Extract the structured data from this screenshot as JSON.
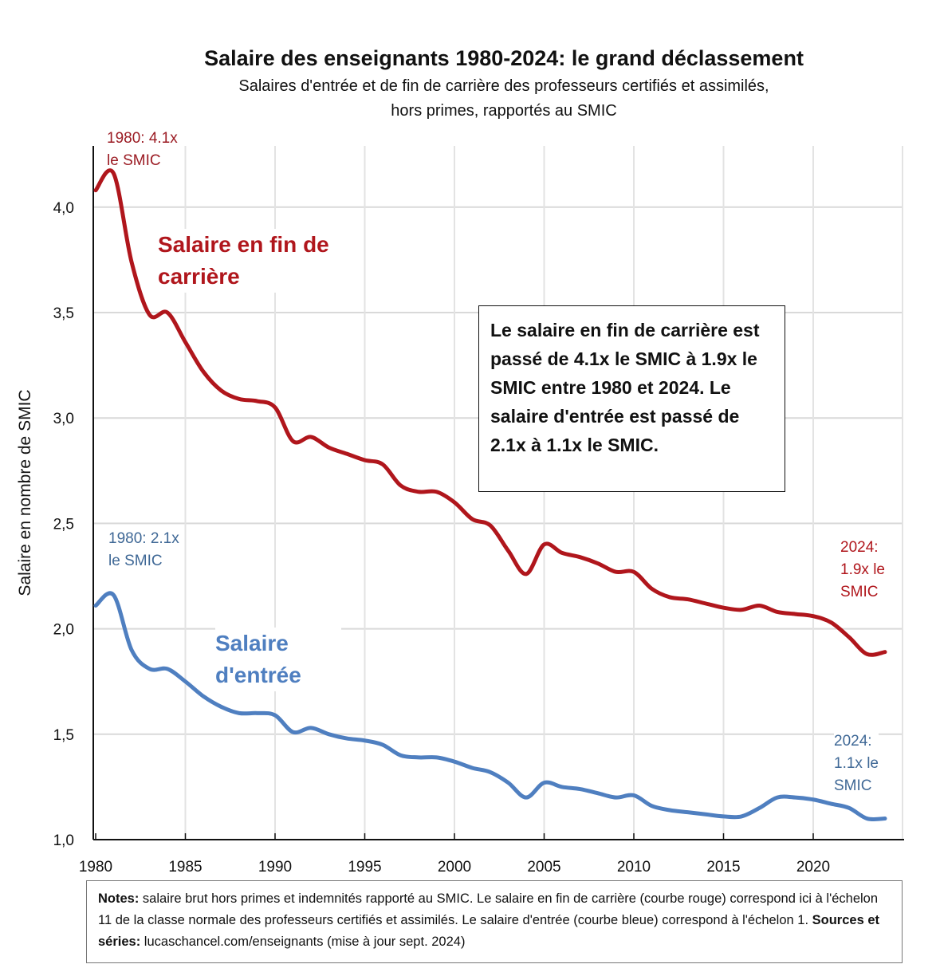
{
  "chart_data": {
    "type": "line",
    "title": "Salaire des enseignants 1980-2024: le grand déclassement",
    "subtitle_line1": "Salaires d'entrée et de fin de carrière des professeurs certifiés et assimilés,",
    "subtitle_line2": "hors primes, rapportés au SMIC",
    "xlabel": "",
    "ylabel": "Salaire en nombre de SMIC",
    "xlim": [
      1980,
      2024
    ],
    "ylim": [
      1.0,
      4.3
    ],
    "x_ticks": [
      "1980",
      "1985",
      "1990",
      "1995",
      "2000",
      "2005",
      "2010",
      "2015",
      "2020"
    ],
    "y_ticks": [
      "1,0",
      "1,5",
      "2,0",
      "2,5",
      "3,0",
      "3,5",
      "4,0"
    ],
    "grid": true,
    "x": [
      1980,
      1981,
      1982,
      1983,
      1984,
      1985,
      1986,
      1987,
      1988,
      1989,
      1990,
      1991,
      1992,
      1993,
      1994,
      1995,
      1996,
      1997,
      1998,
      1999,
      2000,
      2001,
      2002,
      2003,
      2004,
      2005,
      2006,
      2007,
      2008,
      2009,
      2010,
      2011,
      2012,
      2013,
      2014,
      2015,
      2016,
      2017,
      2018,
      2019,
      2020,
      2021,
      2022,
      2023,
      2024
    ],
    "series": [
      {
        "name": "Salaire en fin de carrière",
        "color": "#b0161c",
        "values": [
          4.08,
          4.16,
          3.74,
          3.49,
          3.5,
          3.36,
          3.22,
          3.13,
          3.09,
          3.08,
          3.05,
          2.89,
          2.91,
          2.86,
          2.83,
          2.8,
          2.78,
          2.68,
          2.65,
          2.65,
          2.6,
          2.52,
          2.49,
          2.37,
          2.26,
          2.4,
          2.36,
          2.34,
          2.31,
          2.27,
          2.27,
          2.19,
          2.15,
          2.14,
          2.12,
          2.1,
          2.09,
          2.11,
          2.08,
          2.07,
          2.06,
          2.03,
          1.96,
          1.88,
          1.89
        ]
      },
      {
        "name": "Salaire d'entrée",
        "color": "#4f7fc0",
        "values": [
          2.11,
          2.16,
          1.9,
          1.81,
          1.81,
          1.75,
          1.68,
          1.63,
          1.6,
          1.6,
          1.59,
          1.51,
          1.53,
          1.5,
          1.48,
          1.47,
          1.45,
          1.4,
          1.39,
          1.39,
          1.37,
          1.34,
          1.32,
          1.27,
          1.2,
          1.27,
          1.25,
          1.24,
          1.22,
          1.2,
          1.21,
          1.16,
          1.14,
          1.13,
          1.12,
          1.11,
          1.11,
          1.15,
          1.2,
          1.2,
          1.19,
          1.17,
          1.15,
          1.1,
          1.1
        ]
      }
    ],
    "series_labels": {
      "red_line1": "Salaire en fin de",
      "red_line2": "carrière",
      "blue_line1": "Salaire",
      "blue_line2": "d'entrée"
    },
    "annotations": {
      "red_start_1": "1980: 4.1x",
      "red_start_2": "le SMIC",
      "blue_start_1": "1980: 2.1x",
      "blue_start_2": "le SMIC",
      "red_end_1": "2024:",
      "red_end_2": "1.9x le",
      "red_end_3": "SMIC",
      "blue_end_1": "2024:",
      "blue_end_2": "1.1x le",
      "blue_end_3": "SMIC",
      "box_text": "Le salaire en fin de carrière est passé de 4.1x le SMIC à 1.9x le SMIC entre 1980 et 2024. Le salaire d'entrée est passé de 2.1x à 1.1x le SMIC."
    }
  },
  "notes": {
    "label1": "Notes:",
    "text1": " salaire brut hors primes et indemnités rapporté au SMIC. Le salaire en fin de carrière (courbe rouge) correspond ici à l'échelon 11 de la classe normale des professeurs certifiés et assimilés. Le salaire d'entrée (courbe bleue) correspond à l'échelon 1. ",
    "label2": "Sources et séries:",
    "text2": " lucaschancel.com/enseignants (mise à jour sept. 2024)"
  }
}
